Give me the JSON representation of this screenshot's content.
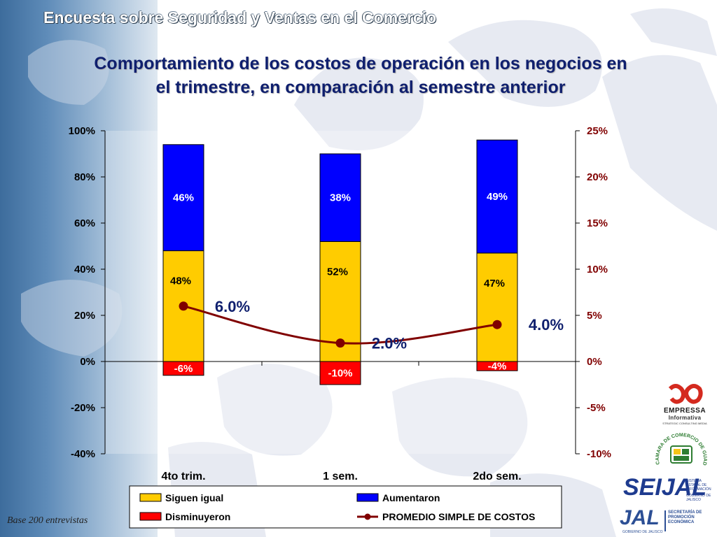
{
  "slide": {
    "title": "Encuesta sobre Seguridad y Ventas en el Comercio",
    "note": "Base 200 entrevistas"
  },
  "colors": {
    "siguen_igual": "#ffcc00",
    "aumentaron": "#0000ff",
    "disminuyeron": "#ff0000",
    "promedio": "#800000",
    "tick_left": "#000000",
    "tick_right": "#800000",
    "title": "#0f1f6e"
  },
  "logos": {
    "empressa_name": "EMPRESSA",
    "empressa_name2": "Informativa",
    "empressa_tag": "STRATEGIC CONSULTING MEDIA",
    "canaco_text": "CAMARA DE COMERCIO DE GUADALAJARA",
    "seija_mark": "SEIJAL",
    "seija_sub": "SISTEMA ESTATAL DE INFORMACIÓN",
    "seija_gov": "GOBIERNO DE JALISCO",
    "jal_mark": "JAL",
    "jal_sub": "GOBIERNO DE JALISCO",
    "sec_text": "SECRETARÍA DE PROMOCIÓN ECONÓMICA"
  },
  "chart_data": {
    "type": "bar",
    "stacked": true,
    "title": "Comportamiento de los costos de operación en los negocios en el trimestre, en comparación al semestre anterior",
    "title_lines": [
      "Comportamiento de los costos de operación en los negocios en",
      "el trimestre, en comparación al semestre anterior"
    ],
    "categories": [
      "4to trim.",
      "1 sem.",
      "2do sem."
    ],
    "series": [
      {
        "name": "Siguen igual",
        "values": [
          48,
          52,
          47
        ],
        "labels": [
          "48%",
          "52%",
          "47%"
        ],
        "axis": "left"
      },
      {
        "name": "Aumentaron",
        "values": [
          46,
          38,
          49
        ],
        "labels": [
          "46%",
          "38%",
          "49%"
        ],
        "axis": "left"
      },
      {
        "name": "Disminuyeron",
        "values": [
          -6,
          -10,
          -4
        ],
        "labels": [
          "-6%",
          "-10%",
          "-4%"
        ],
        "axis": "left"
      },
      {
        "name": "PROMEDIO SIMPLE DE COSTOS",
        "type": "line",
        "values": [
          6.0,
          2.0,
          4.0
        ],
        "labels": [
          "6.0%",
          "2.0%",
          "4.0%"
        ],
        "axis": "right"
      }
    ],
    "ylim_left": [
      -40,
      100
    ],
    "yticks_left": [
      -40,
      -20,
      0,
      20,
      40,
      60,
      80,
      100
    ],
    "yticklabels_left": [
      "-40%",
      "-20%",
      "0%",
      "20%",
      "40%",
      "60%",
      "80%",
      "100%"
    ],
    "ylim_right": [
      -10,
      25
    ],
    "yticks_right": [
      -10,
      -5,
      0,
      5,
      10,
      15,
      20,
      25
    ],
    "yticklabels_right": [
      "-10%",
      "-5%",
      "0%",
      "5%",
      "10%",
      "15%",
      "20%",
      "25%"
    ],
    "grid": false,
    "legend_position": "bottom",
    "legend": [
      "Siguen igual",
      "Aumentaron",
      "Disminuyeron",
      "PROMEDIO SIMPLE DE COSTOS"
    ]
  }
}
